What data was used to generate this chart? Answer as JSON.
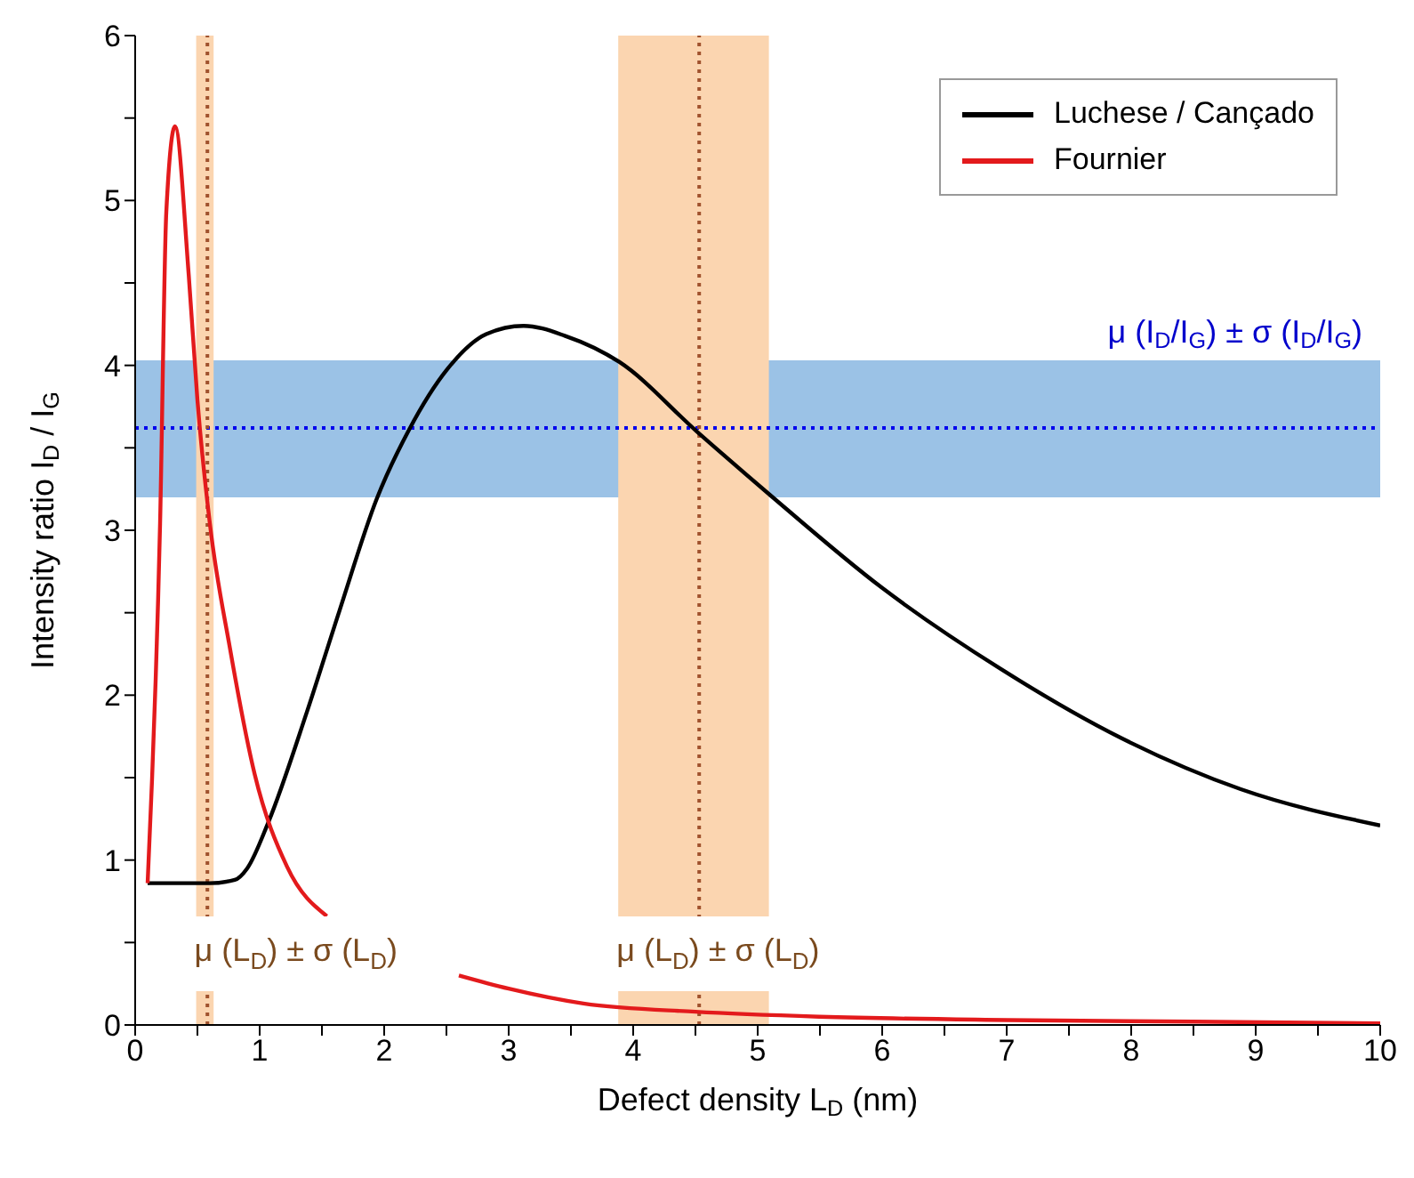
{
  "chart_data": {
    "type": "line",
    "xlabel": "Defect density L$_{D}$ (nm)",
    "ylabel": "Intensity ratio  I$_{D}$ / I$_{G}$",
    "xlim": [
      0,
      10
    ],
    "xticks": [
      0,
      {
        "value": 0.5,
        "label": null
      },
      1,
      {
        "value": 1.5,
        "label": null
      },
      2,
      {
        "value": 2.5,
        "label": null
      },
      3,
      {
        "value": 3.5,
        "label": null
      },
      4,
      {
        "value": 4.5,
        "label": null
      },
      5,
      {
        "value": 5.5,
        "label": null
      },
      6,
      {
        "value": 6.5,
        "label": null
      },
      7,
      {
        "value": 7.5,
        "label": null
      },
      8,
      {
        "value": 8.5,
        "label": null
      },
      9,
      {
        "value": 9.5,
        "label": null
      },
      10
    ],
    "ylim": [
      0,
      6
    ],
    "yticks": [
      0,
      {
        "value": 0.5,
        "label": null
      },
      1,
      {
        "value": 1.5,
        "label": null
      },
      2,
      {
        "value": 2.5,
        "label": null
      },
      3,
      {
        "value": 3.5,
        "label": null
      },
      4,
      {
        "value": 4.5,
        "label": null
      },
      5,
      {
        "value": 5.5,
        "label": null
      },
      6
    ],
    "grid": false,
    "legend": "top right",
    "series": [
      {
        "name": "Luchese / Cançado",
        "color": "#000000",
        "x": [
          0.1,
          0.6,
          0.8,
          0.9,
          1.07,
          1.38,
          1.64,
          1.94,
          2.2,
          2.51,
          2.82,
          3.12,
          3.45,
          3.89,
          4.51,
          5.09,
          6.0,
          6.95,
          7.92,
          8.88,
          10.0
        ],
        "values": [
          0.86,
          0.86,
          0.88,
          0.95,
          1.23,
          1.9,
          2.51,
          3.19,
          3.61,
          3.98,
          4.19,
          4.24,
          4.18,
          4.02,
          3.6,
          3.22,
          2.65,
          2.16,
          1.74,
          1.43,
          1.21
        ]
      },
      {
        "name": "Fournier",
        "color": "#e31a1c",
        "x": [
          0.1,
          0.2,
          0.25,
          0.32,
          0.43,
          0.5,
          0.6,
          0.76,
          0.96,
          1.22,
          1.54,
          2.0,
          2.6,
          3.0,
          3.6,
          4.5,
          5.5,
          7.0,
          8.5,
          10.0
        ],
        "values": [
          0.86,
          3.04,
          4.93,
          5.45,
          4.55,
          3.79,
          3.04,
          2.29,
          1.52,
          0.96,
          0.66,
          null,
          0.3,
          0.22,
          0.13,
          0.08,
          0.05,
          0.03,
          0.02,
          0.01
        ]
      }
    ],
    "bands": [
      {
        "axis": "y",
        "from": 3.2,
        "to": 4.03,
        "color": "#9bc2e6",
        "label": "μ (I$_{D}$/I$_{G}$) ± σ (I$_{D}$/I$_{G}$)"
      },
      {
        "axis": "x",
        "from": 0.49,
        "to": 0.63,
        "color": "#fbd5b0",
        "label": "μ (L$_{D}$) ± σ (L$_{D}$)"
      },
      {
        "axis": "x",
        "from": 3.88,
        "to": 5.09,
        "color": "#fbd5b0",
        "label": "μ (L$_{D}$) ± σ (L$_{D}$)"
      }
    ],
    "ref_lines": [
      {
        "axis": "y",
        "value": 3.62,
        "color": "#0000ee",
        "line_style": "dotted"
      },
      {
        "axis": "x",
        "value": 0.58,
        "color": "#a0522d",
        "line_style": "dotted"
      },
      {
        "axis": "x",
        "value": 4.53,
        "color": "#a0522d",
        "line_style": "dotted"
      }
    ]
  }
}
